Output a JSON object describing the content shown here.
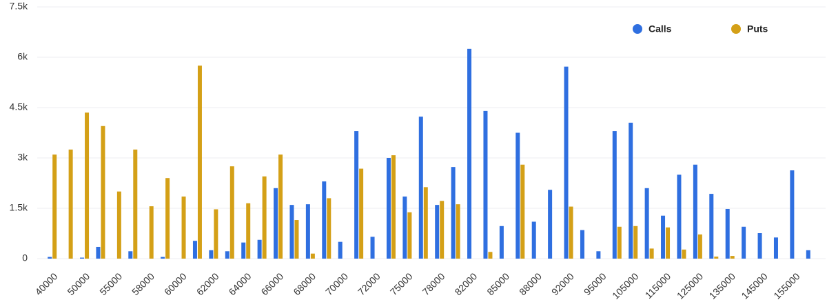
{
  "chart_data": {
    "type": "bar",
    "categories": [
      "40000",
      null,
      "50000",
      null,
      "55000",
      null,
      "58000",
      null,
      "60000",
      null,
      "62000",
      null,
      "64000",
      null,
      "66000",
      null,
      "68000",
      null,
      "70000",
      null,
      "72000",
      null,
      "75000",
      null,
      "78000",
      null,
      "82000",
      null,
      "85000",
      null,
      "88000",
      null,
      "92000",
      null,
      "95000",
      null,
      "105000",
      null,
      "115000",
      null,
      "125000",
      null,
      "135000",
      null,
      "145000",
      null,
      "155000",
      null
    ],
    "series": [
      {
        "name": "Calls",
        "color": "#2f6fe0",
        "values": [
          50,
          0,
          30,
          350,
          0,
          220,
          0,
          50,
          0,
          530,
          250,
          220,
          480,
          560,
          2100,
          1600,
          1620,
          2300,
          500,
          3800,
          650,
          3000,
          1850,
          4230,
          1600,
          2730,
          6250,
          4400,
          970,
          3750,
          1100,
          2050,
          5720,
          850,
          220,
          3800,
          4050,
          2100,
          1280,
          2500,
          2800,
          1930,
          1480,
          950,
          760,
          630,
          2630,
          250
        ]
      },
      {
        "name": "Puts",
        "color": "#d4a017",
        "values": [
          3100,
          3250,
          4350,
          3950,
          2000,
          3250,
          1560,
          2400,
          1850,
          5750,
          1470,
          2750,
          1650,
          2450,
          3100,
          1150,
          150,
          1800,
          0,
          2680,
          0,
          3080,
          1380,
          2130,
          1720,
          1620,
          0,
          200,
          0,
          2800,
          0,
          0,
          1550,
          0,
          0,
          950,
          970,
          300,
          930,
          270,
          720,
          60,
          80,
          0,
          0,
          0,
          0,
          0
        ]
      }
    ],
    "ylim": [
      0,
      7500
    ],
    "yticks": [
      0,
      {
        "value": 1500,
        "label": "1.5k"
      },
      {
        "value": 3000,
        "label": "3k"
      },
      {
        "value": 4500,
        "label": "4.5k"
      },
      {
        "value": 6000,
        "label": "6k"
      },
      {
        "value": 7500,
        "label": "7.5k"
      }
    ],
    "grid": true,
    "legend": "top-right"
  }
}
